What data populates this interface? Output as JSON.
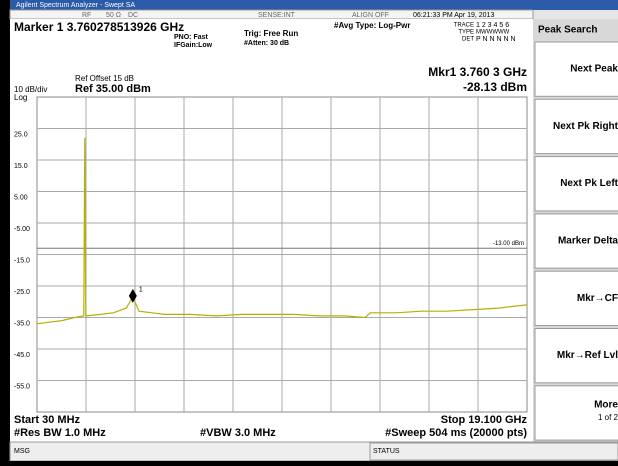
{
  "window": {
    "title": "Agilent Spectrum Analyzer - Swept SA"
  },
  "status_row": {
    "rf": "RF",
    "impedance": "50 Ω",
    "coupling": "DC",
    "sense": "SENSE:INT",
    "align": "ALIGN OFF",
    "time": "06:21:33 PM Apr 19, 2013"
  },
  "marker_header": {
    "title": "Marker 1 3.760278513926 GHz",
    "pno": "PNO: Fast",
    "ifgain": "IFGain:Low",
    "trig": "Trig: Free Run",
    "atten": "#Atten: 30 dB",
    "avg": "#Avg Type: Log-Pwr",
    "trace_label": "TRACE",
    "trace": "1 2 3 4 5 6",
    "type_label": "TYPE",
    "type": "MWWWWW",
    "det_label": "DET",
    "det": "P N N N N N",
    "mkr_freq": "Mkr1 3.760 3 GHz",
    "mkr_amp": "-28.13 dBm"
  },
  "plot": {
    "ref_offset": "Ref Offset 15 dB",
    "scale": "10 dB/div",
    "ref": "Ref 35.00 dBm",
    "log": "Log",
    "xlim": [
      30,
      19100
    ],
    "ylim": [
      -65,
      35
    ],
    "yticks": [
      {
        "value": 25,
        "label": "25.0"
      },
      {
        "value": 15,
        "label": "15.0"
      },
      {
        "value": 5,
        "label": "5.00"
      },
      {
        "value": -5,
        "label": "-5.00"
      },
      {
        "value": -15,
        "label": "-15.0"
      },
      {
        "value": -25,
        "label": "-25.0"
      },
      {
        "value": -35,
        "label": "-35.0"
      },
      {
        "value": -45,
        "label": "-45.0"
      },
      {
        "value": -55,
        "label": "-55.0"
      }
    ],
    "display_line": {
      "value": -13,
      "label": "-13.00 dBm"
    },
    "trace": {
      "color": "#b5b000",
      "x": [
        30,
        500,
        1000,
        1500,
        1850,
        1890,
        1930,
        2500,
        3000,
        3500,
        3760,
        4000,
        4500,
        5000,
        6000,
        7000,
        8000,
        9000,
        10000,
        11000,
        12000,
        12800,
        13000,
        14000,
        15000,
        16000,
        17000,
        18000,
        18500,
        19100
      ],
      "y": [
        -37,
        -36.5,
        -36,
        -35,
        -34.5,
        22,
        -34.5,
        -34,
        -33.5,
        -32,
        -28.5,
        -33,
        -33.5,
        -34,
        -34,
        -34.5,
        -34,
        -34,
        -34,
        -34.5,
        -34.5,
        -35,
        -33.5,
        -33.5,
        -33,
        -33,
        -32.5,
        -32,
        -31.5,
        -31
      ]
    },
    "marker": {
      "x": 3760.3,
      "y": -28.13,
      "label": "1"
    },
    "start": "Start 30 MHz",
    "stop": "Stop 19.100 GHz",
    "rbw": "#Res BW 1.0 MHz",
    "vbw": "#VBW 3.0 MHz",
    "sweep": "#Sweep  504 ms (20000 pts)"
  },
  "softkeys": {
    "header": "Peak Search",
    "keys": [
      "Next Peak",
      "Next Pk Right",
      "Next Pk Left",
      "Marker Delta",
      "Mkr→CF",
      "Mkr→Ref Lvl",
      "More"
    ],
    "more_sub": "1 of 2"
  },
  "statusbar": {
    "msg": "MSG",
    "status": "STATUS"
  }
}
